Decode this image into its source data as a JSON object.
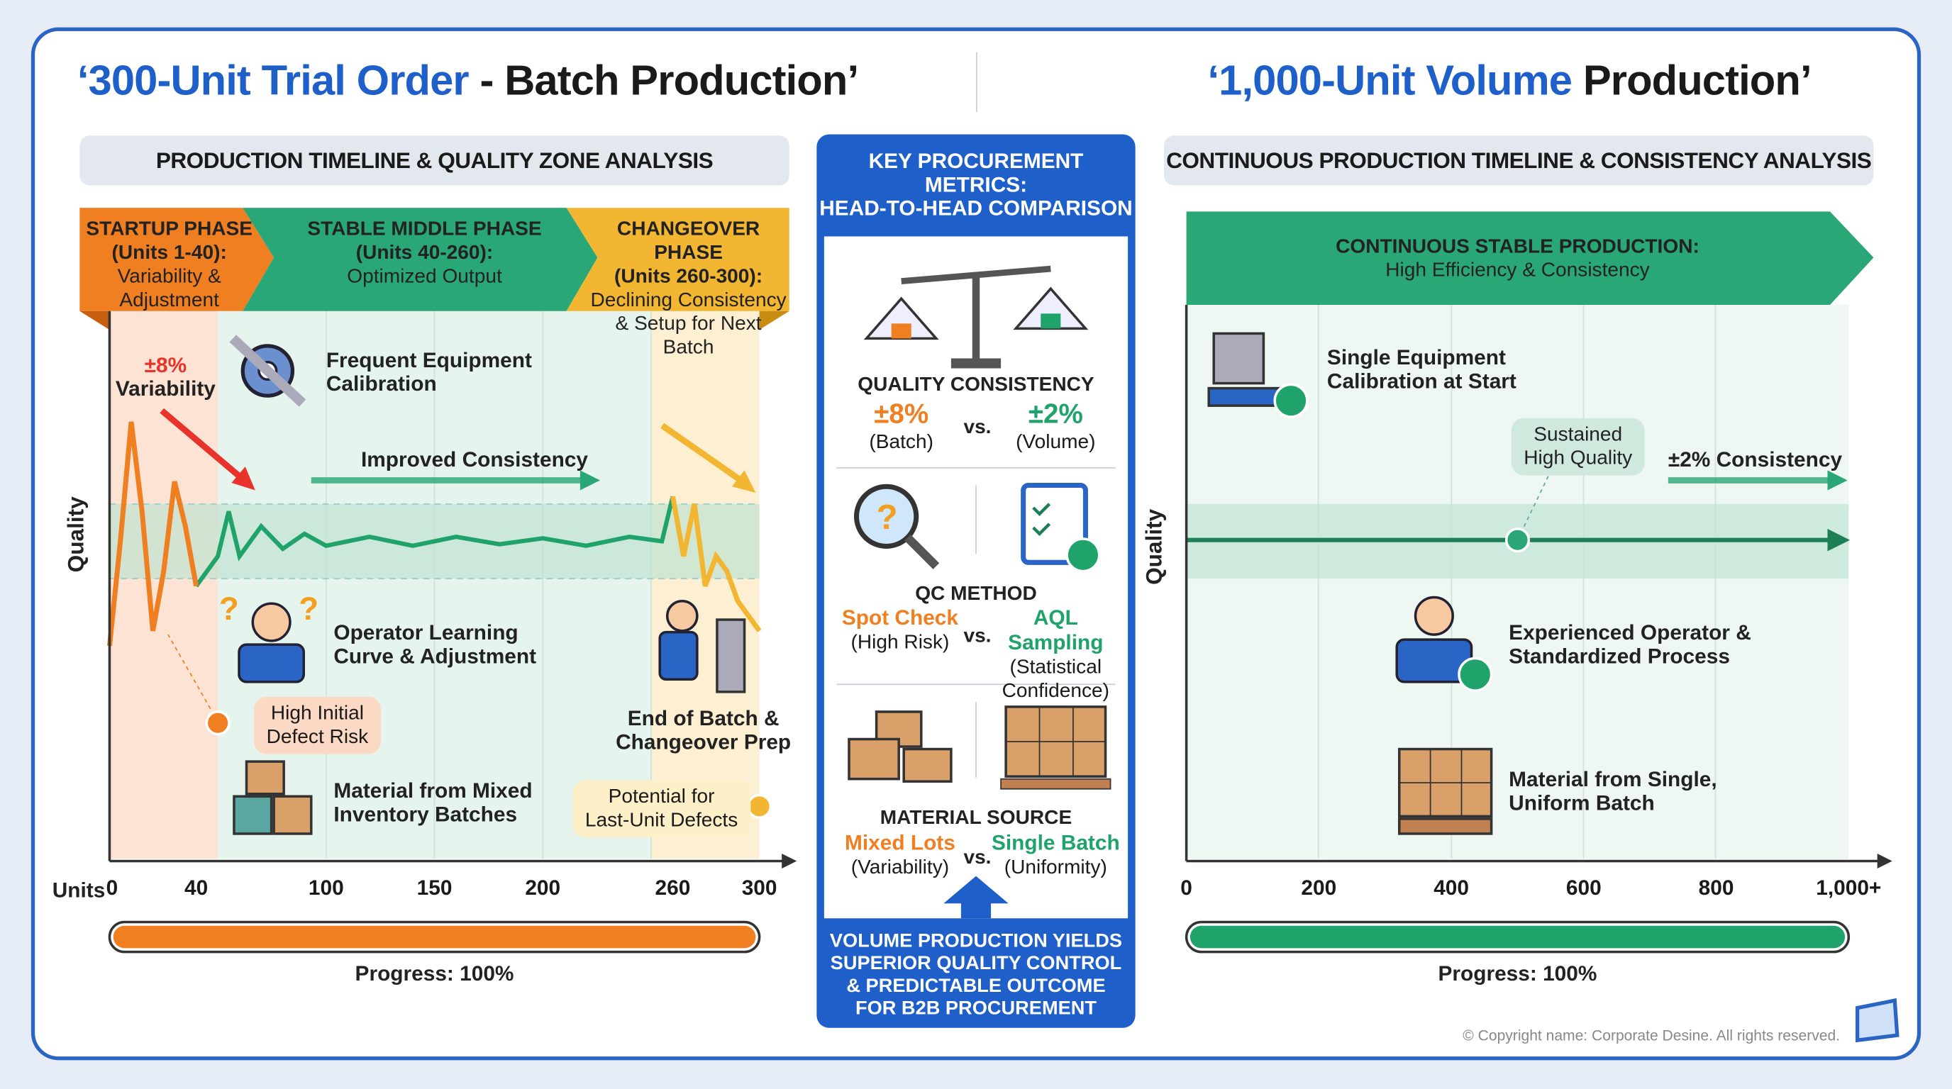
{
  "colors": {
    "accent": "#1f5fc9",
    "orange": "#f07f22",
    "green": "#1fa36a",
    "yellow": "#f2b632"
  },
  "left": {
    "title_blue": "‘300-Unit Trial Order",
    "title_rest": " - Batch Production’",
    "band": "PRODUCTION TIMELINE & QUALITY ZONE ANALYSIS",
    "phases": [
      {
        "title": "STARTUP PHASE",
        "range": "(Units 1-40):",
        "desc1": "Variability &",
        "desc2": "Adjustment"
      },
      {
        "title": "STABLE MIDDLE PHASE",
        "range": "(Units 40-260):",
        "desc1": "Optimized Output",
        "desc2": ""
      },
      {
        "title": "CHANGEOVER PHASE",
        "range": "(Units 260-300):",
        "desc1": "Declining Consistency",
        "desc2": "& Setup for Next Batch"
      }
    ],
    "variability_value": "±8%",
    "variability_label": "Variability",
    "calibration": [
      "Frequent Equipment",
      "Calibration"
    ],
    "improved": "Improved Consistency",
    "operator": [
      "Operator Learning",
      "Curve & Adjustment"
    ],
    "defect_risk": [
      "High Initial",
      "Defect Risk"
    ],
    "end_batch": [
      "End of Batch &",
      "Changeover Prep"
    ],
    "material": [
      "Material from Mixed",
      "Inventory Batches"
    ],
    "last_unit": [
      "Potential for",
      "Last-Unit Defects"
    ],
    "ylabel": "Quality",
    "xprefix": "Units",
    "progress_label": "Progress: 100%",
    "progress": 100
  },
  "right": {
    "title_blue": "‘1,000-Unit Volume",
    "title_rest": " Production’",
    "band": "CONTINUOUS PRODUCTION TIMELINE & CONSISTENCY ANALYSIS",
    "arrow_title": "CONTINUOUS STABLE PRODUCTION:",
    "arrow_sub": "High Efficiency & Consistency",
    "calibration": [
      "Single Equipment",
      "Calibration at Start"
    ],
    "sustained": [
      "Sustained",
      "High Quality"
    ],
    "consistency": "±2% Consistency",
    "operator": [
      "Experienced Operator &",
      "Standardized Process"
    ],
    "material": [
      "Material from Single,",
      "Uniform Batch"
    ],
    "ylabel": "Quality",
    "progress_label": "Progress: 100%",
    "progress": 100
  },
  "middle": {
    "header": [
      "KEY PROCUREMENT",
      "METRICS:",
      "HEAD-TO-HEAD COMPARISON"
    ],
    "vs": "vs.",
    "metrics": [
      {
        "title": "QUALITY CONSISTENCY",
        "left": "±8%",
        "left_sub": "(Batch)",
        "right": "±2%",
        "right_sub": "(Volume)",
        "right_sub2": ""
      },
      {
        "title": "QC METHOD",
        "left": "Spot Check",
        "left_sub": "(High Risk)",
        "right": "AQL Sampling",
        "right_sub": "(Statistical",
        "right_sub2": "Confidence)"
      },
      {
        "title": "MATERIAL SOURCE",
        "left": "Mixed Lots",
        "left_sub": "(Variability)",
        "right": "Single Batch",
        "right_sub": "(Uniformity)",
        "right_sub2": ""
      }
    ],
    "footer": [
      "VOLUME PRODUCTION YIELDS",
      "SUPERIOR QUALITY CONTROL",
      "& PREDICTABLE OUTCOME",
      "FOR B2B PROCUREMENT"
    ]
  },
  "copyright": "© Copyright name: Corporate Desine. All rights reserved.",
  "chart_data": [
    {
      "type": "line",
      "ylabel": "Quality",
      "xlabel": "Units",
      "xticks": [
        "0",
        "40",
        "100",
        "150",
        "200",
        "260",
        "300"
      ],
      "xlim": [
        0,
        300
      ],
      "zones": [
        {
          "from": 0,
          "to": 40,
          "color": "#f07f22"
        },
        {
          "from": 40,
          "to": 260,
          "color": "#1fa36a"
        },
        {
          "from": 260,
          "to": 300,
          "color": "#f2b632"
        }
      ],
      "tolerance_band_pct": 2,
      "series": [
        {
          "x": [
            0,
            5,
            10,
            15,
            20,
            25,
            30,
            35,
            40,
            50,
            55,
            60,
            70,
            80,
            90,
            100,
            120,
            140,
            160,
            180,
            200,
            220,
            240,
            255,
            260,
            265,
            270,
            275,
            280,
            285,
            290,
            295,
            300
          ],
          "y": [
            -7,
            0,
            8,
            2,
            -6,
            -2,
            4,
            1,
            -3,
            -1,
            2,
            -1,
            1,
            -0.5,
            0.5,
            -0.3,
            0.3,
            -0.3,
            0.3,
            -0.2,
            0.2,
            -0.3,
            0.3,
            0,
            3,
            -1,
            2.5,
            -3,
            -1,
            -2,
            -4,
            -5,
            -6
          ]
        }
      ]
    },
    {
      "type": "line",
      "ylabel": "Quality",
      "xticks": [
        "0",
        "200",
        "400",
        "600",
        "800",
        "1,000+"
      ],
      "xlim": [
        0,
        1000
      ],
      "tolerance_band_pct": 2,
      "series": [
        {
          "x": [
            0,
            1000
          ],
          "y": [
            0,
            0
          ]
        }
      ],
      "marker": {
        "x": 500,
        "y": 0
      }
    }
  ]
}
